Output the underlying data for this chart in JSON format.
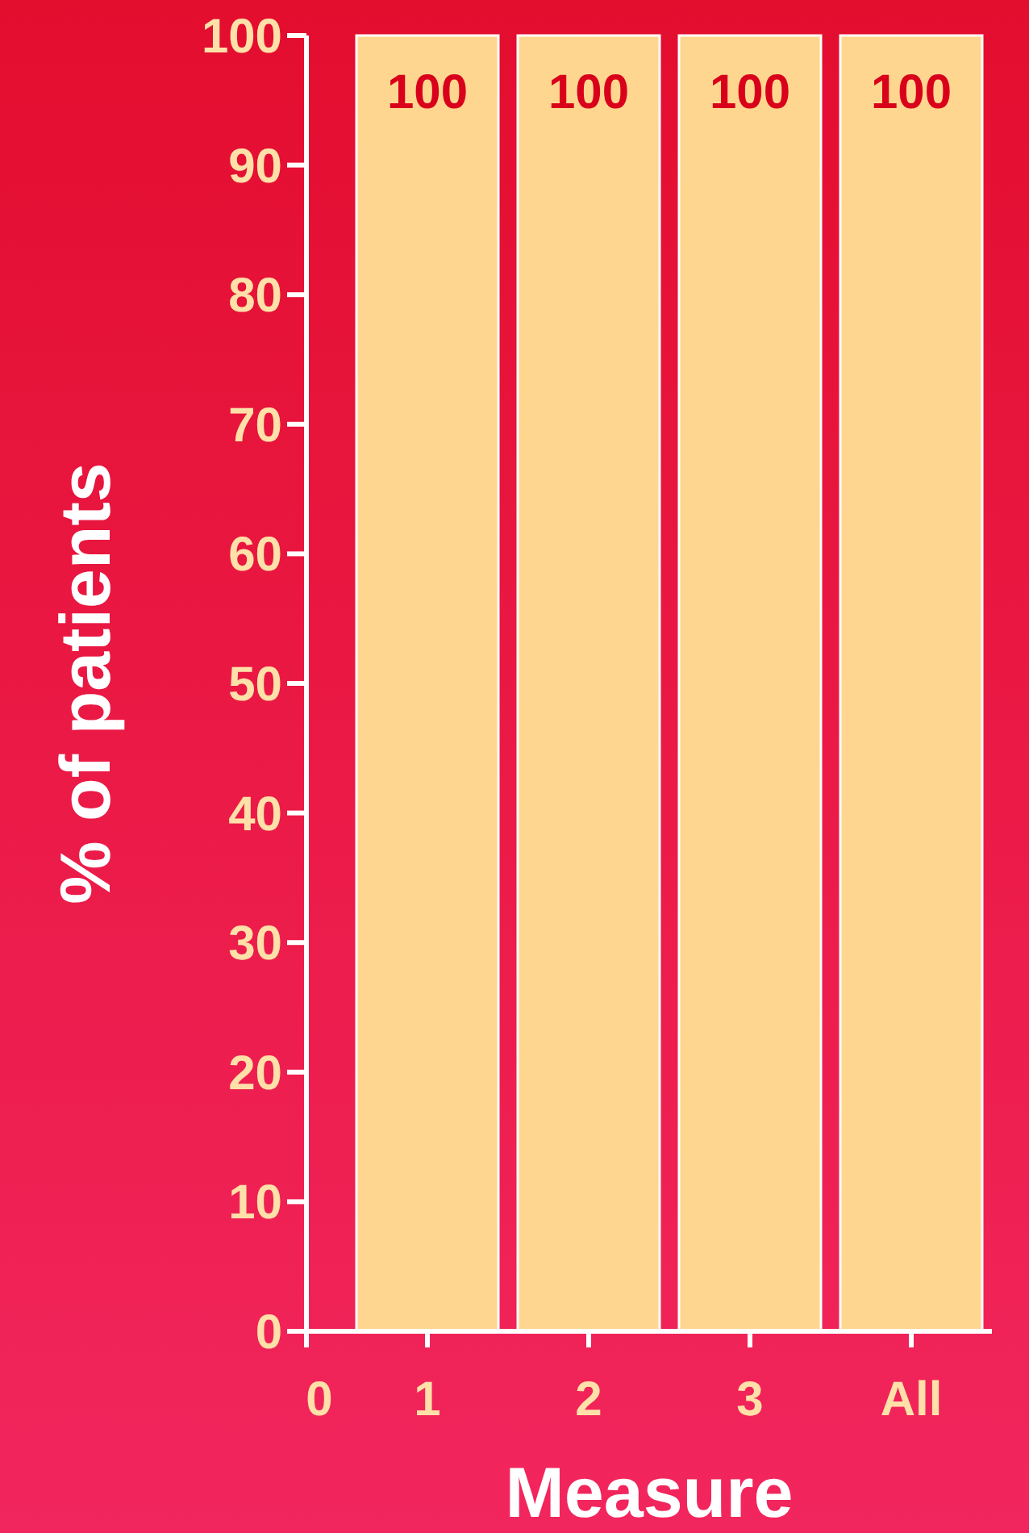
{
  "chart_data": {
    "type": "bar",
    "xlabel": "Measure",
    "ylabel": "% of patients",
    "categories": [
      "0",
      "1",
      "2",
      "3",
      "All"
    ],
    "values": [
      null,
      100,
      100,
      100,
      100
    ],
    "color": "#ffd68f",
    "ylim": [
      0,
      100
    ],
    "yticks": [
      0,
      10,
      20,
      30,
      40,
      50,
      60,
      70,
      80,
      90,
      100
    ],
    "data_labels": true,
    "grid": false
  }
}
